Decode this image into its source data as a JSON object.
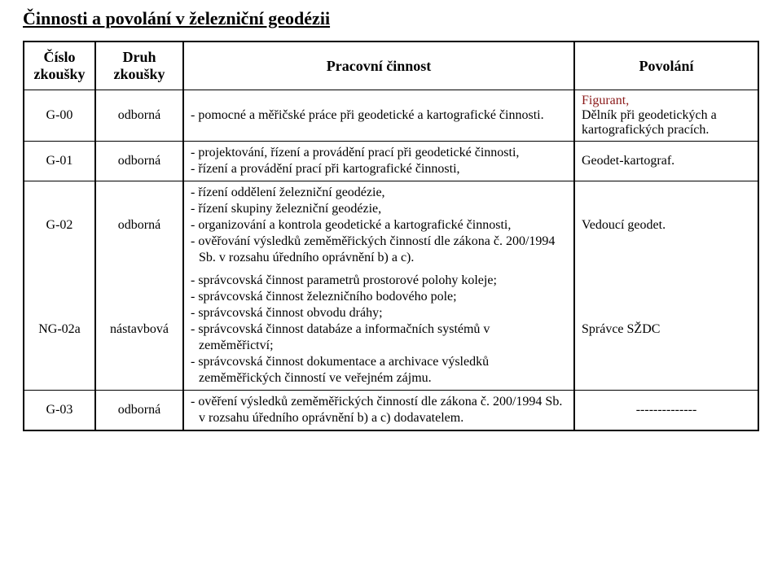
{
  "title": "Činnosti a povolání v železniční geodézii",
  "headers": {
    "c1a": "Číslo",
    "c1b": "zkoušky",
    "c2a": "Druh",
    "c2b": "zkoušky",
    "c3": "Pracovní činnost",
    "c4": "Povolání"
  },
  "rows": {
    "r0": {
      "code": "G-00",
      "type": "odborná",
      "activity_items": [
        "- pomocné a měřičské práce při geodetické a kartografické činnosti."
      ],
      "profession_lines": [
        "Figurant,",
        "Dělník při geodetických a kartografických pracích."
      ]
    },
    "r1": {
      "code": "G-01",
      "type": "odborná",
      "activity_items": [
        "- projektování, řízení a provádění prací při geodetické činnosti,",
        "- řízení a provádění prací při kartografické činnosti,"
      ],
      "profession": "Geodet-kartograf."
    },
    "r2": {
      "code": "G-02",
      "type": "odborná",
      "activity_items": [
        "- řízení oddělení železniční geodézie,",
        "- řízení skupiny železniční geodézie,",
        "- organizování a kontrola geodetické a kartografické činnosti,",
        "- ověřování výsledků zeměměřických činností dle zákona č. 200/1994 Sb. v rozsahu úředního oprávnění b) a c)."
      ],
      "profession": "Vedoucí geodet."
    },
    "r3": {
      "code": "NG-02a",
      "type": "nástavbová",
      "activity_items": [
        "- správcovská činnost parametrů prostorové polohy koleje;",
        "- správcovská činnost železničního bodového pole;",
        "- správcovská činnost obvodu dráhy;",
        "- správcovská činnost databáze a informačních systémů v zeměměřictví;",
        "- správcovská činnost dokumentace a archivace výsledků zeměměřických činností ve veřejném zájmu."
      ],
      "profession": "Správce SŽDC"
    },
    "r4": {
      "code": "G-03",
      "type": "odborná",
      "activity_items": [
        "- ověření výsledků zeměměřických činností dle zákona č. 200/1994 Sb. v rozsahu úředního oprávnění b) a c) dodavatelem."
      ],
      "profession": "--------------"
    }
  }
}
